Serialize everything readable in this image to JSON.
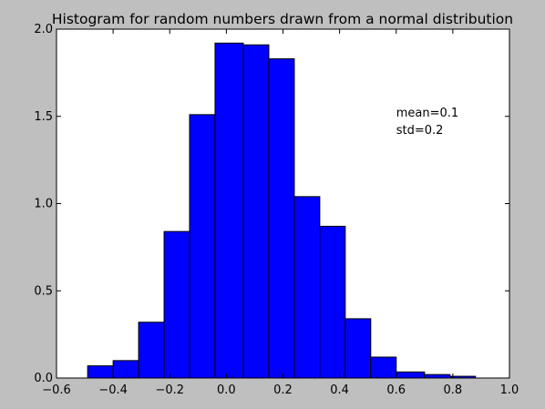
{
  "chart_data": {
    "type": "bar",
    "title": "Histogram for random numbers drawn from a normal distribution",
    "xlabel": "",
    "ylabel": "",
    "xlim": [
      -0.6,
      1.0
    ],
    "ylim": [
      0.0,
      2.0
    ],
    "grid": false,
    "colors": {
      "bar_fill": "#0000ff",
      "bar_edge": "#000000",
      "figure_background": "#bfbfbf",
      "plot_background": "#ffffff"
    },
    "xticks": [
      {
        "value": -0.6,
        "label": "−0.6"
      },
      {
        "value": -0.4,
        "label": "−0.4"
      },
      {
        "value": -0.2,
        "label": "−0.2"
      },
      {
        "value": 0.0,
        "label": "0.0"
      },
      {
        "value": 0.2,
        "label": "0.2"
      },
      {
        "value": 0.4,
        "label": "0.4"
      },
      {
        "value": 0.6,
        "label": "0.6"
      },
      {
        "value": 0.8,
        "label": "0.8"
      },
      {
        "value": 1.0,
        "label": "1.0"
      }
    ],
    "yticks": [
      {
        "value": 0.0,
        "label": "0.0"
      },
      {
        "value": 0.5,
        "label": "0.5"
      },
      {
        "value": 1.0,
        "label": "1.0"
      },
      {
        "value": 1.5,
        "label": "1.5"
      },
      {
        "value": 2.0,
        "label": "2.0"
      }
    ],
    "bins": [
      {
        "x0": -0.49,
        "x1": -0.4,
        "value": 0.07
      },
      {
        "x0": -0.4,
        "x1": -0.31,
        "value": 0.1
      },
      {
        "x0": -0.31,
        "x1": -0.22,
        "value": 0.32
      },
      {
        "x0": -0.22,
        "x1": -0.13,
        "value": 0.84
      },
      {
        "x0": -0.13,
        "x1": -0.04,
        "value": 1.51
      },
      {
        "x0": -0.04,
        "x1": 0.06,
        "value": 1.92
      },
      {
        "x0": 0.06,
        "x1": 0.15,
        "value": 1.91
      },
      {
        "x0": 0.15,
        "x1": 0.24,
        "value": 1.83
      },
      {
        "x0": 0.24,
        "x1": 0.33,
        "value": 1.04
      },
      {
        "x0": 0.33,
        "x1": 0.42,
        "value": 0.87
      },
      {
        "x0": 0.42,
        "x1": 0.51,
        "value": 0.34
      },
      {
        "x0": 0.51,
        "x1": 0.6,
        "value": 0.12
      },
      {
        "x0": 0.6,
        "x1": 0.7,
        "value": 0.035
      },
      {
        "x0": 0.7,
        "x1": 0.79,
        "value": 0.02
      },
      {
        "x0": 0.79,
        "x1": 0.88,
        "value": 0.01
      }
    ],
    "annotations": [
      {
        "text": "mean=0.1",
        "x": 0.6,
        "y": 1.5
      },
      {
        "text": "std=0.2",
        "x": 0.6,
        "y": 1.4
      }
    ]
  }
}
